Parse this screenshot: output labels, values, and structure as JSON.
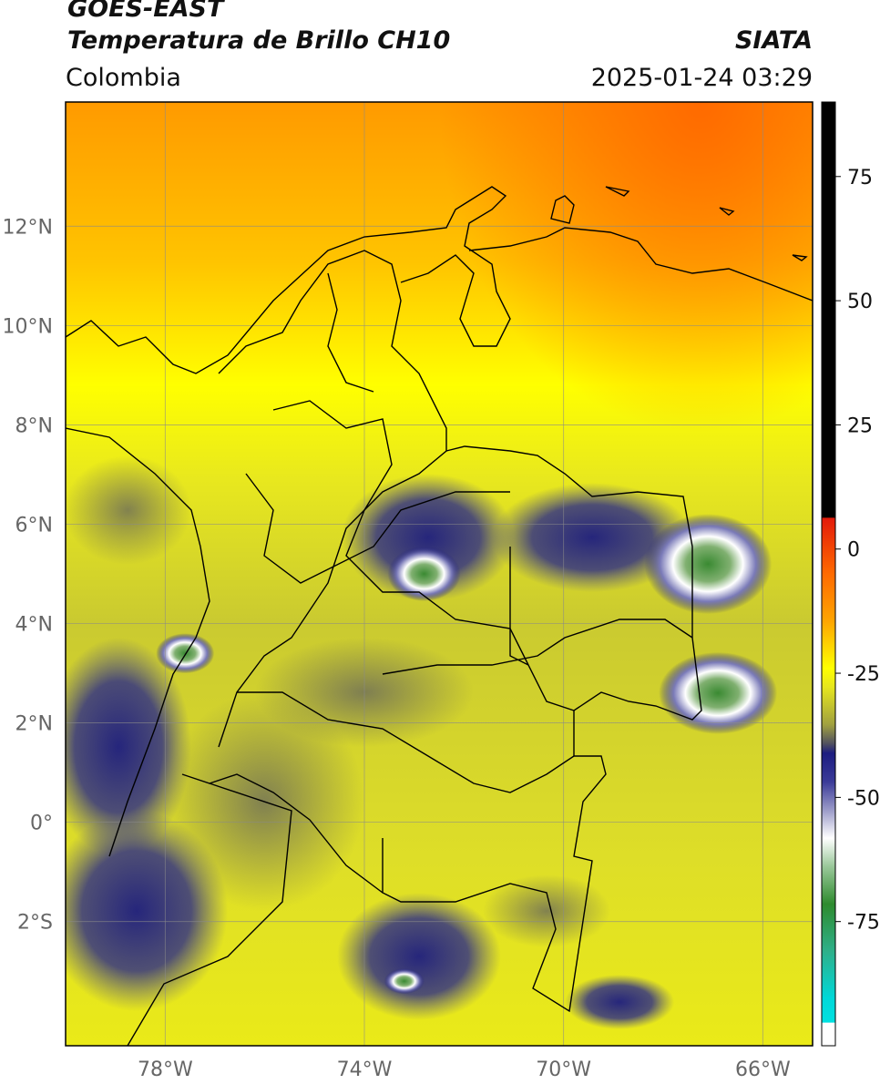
{
  "header": {
    "satellite": "GOES-EAST",
    "product": "Temperatura de Brillo CH10",
    "organization": "SIATA",
    "region": "Colombia",
    "timestamp": "2025-01-24 03:29"
  },
  "map": {
    "lon_range": [
      -80,
      -65
    ],
    "lat_range": [
      -4.5,
      14.5
    ],
    "lat_ticks": [
      {
        "value": 12,
        "label": "12°N"
      },
      {
        "value": 10,
        "label": "10°N"
      },
      {
        "value": 8,
        "label": "8°N"
      },
      {
        "value": 6,
        "label": "6°N"
      },
      {
        "value": 4,
        "label": "4°N"
      },
      {
        "value": 2,
        "label": "2°N"
      },
      {
        "value": 0,
        "label": "0°"
      },
      {
        "value": -2,
        "label": "2°S"
      }
    ],
    "lon_ticks": [
      {
        "value": -78,
        "label": "78°W"
      },
      {
        "value": -74,
        "label": "74°W"
      },
      {
        "value": -70,
        "label": "70°W"
      },
      {
        "value": -66,
        "label": "66°W"
      }
    ],
    "cloud_tops": [
      {
        "lon": -67.1,
        "lat": 5.2
      },
      {
        "lon": -66.9,
        "lat": 2.6
      },
      {
        "lon": -77.6,
        "lat": 3.4
      },
      {
        "lon": -72.8,
        "lat": 5.0
      },
      {
        "lon": -73.2,
        "lat": -3.2
      }
    ]
  },
  "colorbar": {
    "range": [
      -100,
      90
    ],
    "ticks": [
      75,
      50,
      25,
      0,
      -25,
      -50,
      -75
    ],
    "tick_labels": [
      "75",
      "50",
      "25",
      "0",
      "-25",
      "-50",
      "-75"
    ],
    "palette": {
      "black": "#000000",
      "red": "#e31a0a",
      "orange": "#ff8c00",
      "yellow": "#ffff00",
      "olive": "#c8c832",
      "navy": "#1c1c80",
      "white": "#ffffff",
      "green": "#2e8b2e",
      "cyan": "#00d8d8"
    }
  }
}
